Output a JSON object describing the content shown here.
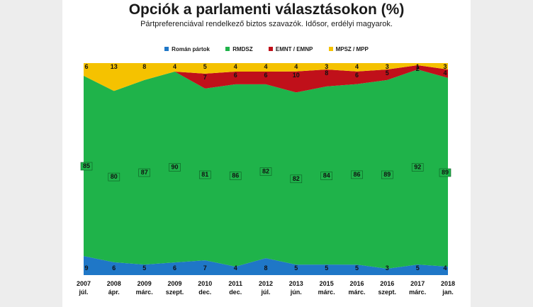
{
  "title": "Opciók a parlamenti választásokon (%)",
  "subtitle": "Pártpreferenciával rendelkező biztos szavazók. Idősor, erdélyi magyarok.",
  "chart_data": {
    "type": "area",
    "stacked": true,
    "ylim": [
      0,
      100
    ],
    "grid": false,
    "legend_position": "top",
    "categories": [
      {
        "year": "2007",
        "month": "júl."
      },
      {
        "year": "2008",
        "month": "ápr."
      },
      {
        "year": "2009",
        "month": "márc."
      },
      {
        "year": "2009",
        "month": "szept."
      },
      {
        "year": "2010",
        "month": "dec."
      },
      {
        "year": "2011",
        "month": "dec."
      },
      {
        "year": "2012",
        "month": "júl."
      },
      {
        "year": "2013",
        "month": "jún."
      },
      {
        "year": "2015",
        "month": "márc."
      },
      {
        "year": "2016",
        "month": "márc."
      },
      {
        "year": "2016",
        "month": "szept."
      },
      {
        "year": "2017",
        "month": "márc."
      },
      {
        "year": "2018",
        "month": "jan."
      }
    ],
    "series": [
      {
        "name": "Román pártok",
        "color": "#1f77c7",
        "values": [
          9,
          6,
          5,
          6,
          7,
          4,
          8,
          5,
          5,
          5,
          3,
          5,
          4
        ],
        "labels": [
          "9",
          "6",
          "5",
          "6",
          "7",
          "4",
          "8",
          "5",
          "5",
          "5",
          "3",
          "5",
          "4"
        ]
      },
      {
        "name": "RMDSZ",
        "color": "#1fb34a",
        "values": [
          85,
          80,
          87,
          90,
          81,
          86,
          82,
          82,
          84,
          86,
          89,
          92,
          89
        ],
        "labels": [
          "85",
          "80",
          "87",
          "90",
          "81",
          "86",
          "82",
          "82",
          "84",
          "86",
          "89",
          "92",
          "89"
        ]
      },
      {
        "name": "EMNT / EMNP",
        "color": "#c0101a",
        "values": [
          0,
          0,
          0,
          0,
          7,
          6,
          6,
          10,
          8,
          6,
          5,
          2,
          4
        ],
        "labels": [
          "",
          "",
          "",
          "",
          "7",
          "6",
          "6",
          "10",
          "8",
          "6",
          "5",
          "2",
          "4"
        ]
      },
      {
        "name": "MPSZ / MPP",
        "color": "#f5c200",
        "values": [
          6,
          13,
          8,
          4,
          5,
          4,
          4,
          4,
          3,
          4,
          3,
          1,
          3
        ],
        "labels": [
          "6",
          "13",
          "8",
          "4",
          "5",
          "4",
          "4",
          "4",
          "3",
          "4",
          "3",
          "1",
          "3"
        ]
      }
    ]
  }
}
